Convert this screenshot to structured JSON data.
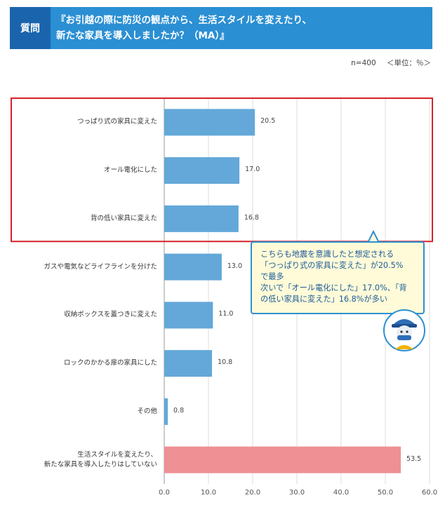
{
  "header": {
    "tag": "質問",
    "question_lines": [
      "『お引越の際に防災の観点から、生活スタイルを変えたり、",
      "新たな家具を導入しましたか？（MA）』"
    ]
  },
  "meta": {
    "sample": "n=400",
    "unit": "＜単位：％＞"
  },
  "callout": {
    "lines": [
      "こちらも地震を意識したと想定される",
      "「つっぱり式の家具に変えた」が20.5%",
      "で最多",
      "次いで「オール電化にした」17.0%、「背",
      "の低い家具に変えた」16.8%が多い"
    ]
  },
  "colors": {
    "bar": "#63a8d9",
    "bar_none": "#ee9094",
    "highlight": "#d5222b",
    "header": "#2b8fd3"
  },
  "chart_data": {
    "type": "bar",
    "orientation": "horizontal",
    "categories": [
      [
        "つっぱり式の家具に変えた"
      ],
      [
        "オール電化にした"
      ],
      [
        "背の低い家具に変えた"
      ],
      [
        "ガスや電気などライフラインを分けた"
      ],
      [
        "収納ボックスを蓋つきに変えた"
      ],
      [
        "ロックのかかる扉の家具にした"
      ],
      [
        "その他"
      ],
      [
        "生活スタイルを変えたり、",
        "新たな家具を導入したりはしていない"
      ]
    ],
    "values": [
      20.5,
      17.0,
      16.8,
      13.0,
      11.0,
      10.8,
      0.8,
      53.5
    ],
    "value_labels": [
      "20.5",
      "17.0",
      "16.8",
      "13.0",
      "11.0",
      "10.8",
      "0.8",
      "53.5"
    ],
    "xlim": [
      0,
      60
    ],
    "ticks": [
      0,
      10,
      20,
      30,
      40,
      50,
      60
    ],
    "tick_labels": [
      "0.0",
      "10.0",
      "20.0",
      "30.0",
      "40.0",
      "50.0",
      "60.0"
    ],
    "highlighted_categories": [
      0,
      1,
      2
    ],
    "grid": true
  }
}
